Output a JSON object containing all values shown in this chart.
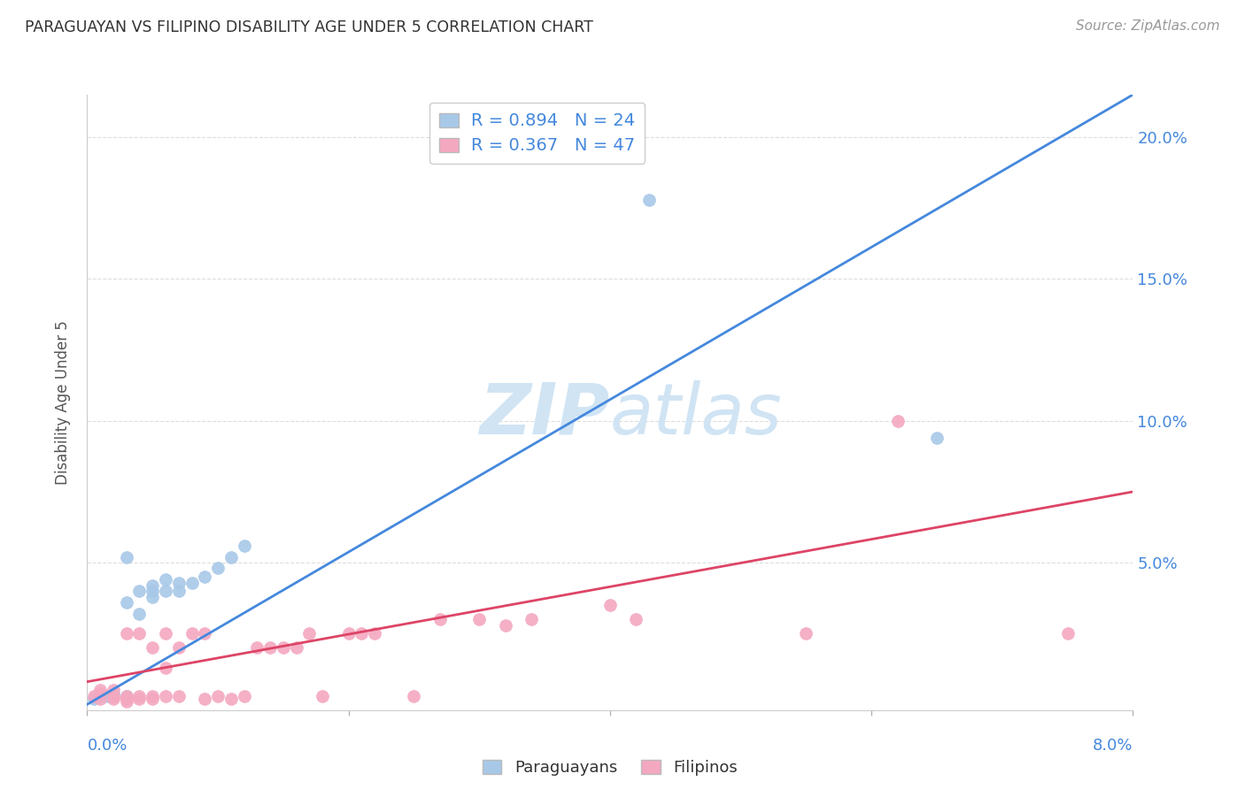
{
  "title": "PARAGUAYAN VS FILIPINO DISABILITY AGE UNDER 5 CORRELATION CHART",
  "source": "Source: ZipAtlas.com",
  "ylabel": "Disability Age Under 5",
  "ytick_labels": [
    "",
    "5.0%",
    "10.0%",
    "15.0%",
    "20.0%"
  ],
  "ytick_vals": [
    0.0,
    0.05,
    0.1,
    0.15,
    0.2
  ],
  "xlim": [
    0.0,
    0.08
  ],
  "ylim": [
    -0.002,
    0.215
  ],
  "paraguayan_R": 0.894,
  "paraguayan_N": 24,
  "filipino_R": 0.367,
  "filipino_N": 47,
  "paraguayan_color": "#a8c8e8",
  "filipino_color": "#f4a8c0",
  "paraguayan_line_color": "#4488DD",
  "filipino_line_color": "#DD4466",
  "legend_text_color": "#4488DD",
  "watermark_color": "#d0e4f4",
  "blue_line_x0": 0.0,
  "blue_line_y0": 0.0,
  "blue_line_x1": 0.08,
  "blue_line_y1": 0.215,
  "pink_line_x0": 0.0,
  "pink_line_y0": 0.008,
  "pink_line_x1": 0.08,
  "pink_line_y1": 0.075,
  "paraguayan_x": [
    0.0005,
    0.001,
    0.0015,
    0.002,
    0.002,
    0.003,
    0.003,
    0.003,
    0.004,
    0.004,
    0.005,
    0.005,
    0.005,
    0.006,
    0.006,
    0.007,
    0.007,
    0.008,
    0.009,
    0.01,
    0.011,
    0.012,
    0.043,
    0.065
  ],
  "paraguayan_y": [
    0.002,
    0.003,
    0.003,
    0.003,
    0.004,
    0.003,
    0.036,
    0.052,
    0.032,
    0.04,
    0.038,
    0.04,
    0.042,
    0.04,
    0.044,
    0.04,
    0.043,
    0.043,
    0.045,
    0.048,
    0.052,
    0.056,
    0.178,
    0.094
  ],
  "filipino_x": [
    0.0005,
    0.001,
    0.001,
    0.001,
    0.002,
    0.002,
    0.002,
    0.003,
    0.003,
    0.003,
    0.003,
    0.004,
    0.004,
    0.004,
    0.005,
    0.005,
    0.005,
    0.006,
    0.006,
    0.006,
    0.007,
    0.007,
    0.008,
    0.009,
    0.009,
    0.01,
    0.011,
    0.012,
    0.013,
    0.014,
    0.015,
    0.016,
    0.017,
    0.018,
    0.02,
    0.021,
    0.022,
    0.025,
    0.027,
    0.03,
    0.032,
    0.034,
    0.04,
    0.042,
    0.055,
    0.062,
    0.075
  ],
  "filipino_y": [
    0.003,
    0.002,
    0.004,
    0.005,
    0.002,
    0.003,
    0.005,
    0.001,
    0.002,
    0.003,
    0.025,
    0.002,
    0.003,
    0.025,
    0.002,
    0.003,
    0.02,
    0.003,
    0.013,
    0.025,
    0.003,
    0.02,
    0.025,
    0.002,
    0.025,
    0.003,
    0.002,
    0.003,
    0.02,
    0.02,
    0.02,
    0.02,
    0.025,
    0.003,
    0.025,
    0.025,
    0.025,
    0.003,
    0.03,
    0.03,
    0.028,
    0.03,
    0.035,
    0.03,
    0.025,
    0.1,
    0.025
  ]
}
